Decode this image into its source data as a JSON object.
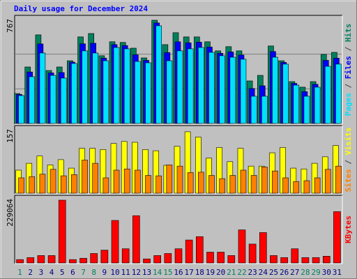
{
  "chart_data": [
    {
      "type": "bar",
      "title": "Daily usage for December 2024",
      "ylim": [
        0,
        767
      ],
      "yticks": [
        767
      ],
      "grid": true,
      "legend_separator": " / ",
      "series": [
        {
          "name": "Pages",
          "color": "#00e0ff",
          "values": [
            206,
            345,
            520,
            355,
            335,
            443,
            536,
            520,
            463,
            561,
            551,
            458,
            448,
            721,
            463,
            536,
            551,
            561,
            525,
            500,
            489,
            474,
            201,
            201,
            489,
            438,
            283,
            201,
            268,
            422,
            438
          ]
        },
        {
          "name": "Files",
          "color": "#0000ff",
          "values": [
            214,
            380,
            587,
            373,
            376,
            453,
            588,
            592,
            482,
            582,
            575,
            507,
            466,
            742,
            523,
            603,
            595,
            600,
            564,
            518,
            528,
            505,
            258,
            278,
            531,
            451,
            296,
            235,
            289,
            466,
            482
          ]
        },
        {
          "name": "Hits",
          "color": "#00805c",
          "values": [
            221,
            417,
            654,
            391,
            417,
            463,
            639,
            664,
            500,
            603,
            598,
            556,
            484,
            762,
            582,
            670,
            639,
            639,
            603,
            536,
            567,
            536,
            314,
            355,
            572,
            463,
            309,
            268,
            309,
            510,
            525
          ]
        }
      ]
    },
    {
      "type": "bar",
      "ylim": [
        0,
        157
      ],
      "yticks": [
        157
      ],
      "legend_separator": " / ",
      "series": [
        {
          "name": "Sites",
          "color": "#ff8000",
          "values": [
            38,
            41,
            47,
            59,
            43,
            46,
            82,
            74,
            38,
            57,
            60,
            57,
            44,
            43,
            70,
            67,
            51,
            52,
            44,
            36,
            44,
            57,
            44,
            65,
            55,
            38,
            29,
            31,
            38,
            59,
            67
          ]
        },
        {
          "name": "Visits",
          "color": "#ffff00",
          "values": [
            57,
            74,
            92,
            70,
            83,
            62,
            111,
            111,
            108,
            123,
            128,
            126,
            108,
            105,
            69,
            116,
            152,
            139,
            87,
            113,
            78,
            111,
            67,
            67,
            100,
            113,
            62,
            60,
            74,
            90,
            118
          ]
        }
      ]
    },
    {
      "type": "bar",
      "ylim": [
        0,
        229064
      ],
      "yticks": [
        229064
      ],
      "categories": [
        "1",
        "2",
        "3",
        "4",
        "5",
        "6",
        "7",
        "8",
        "9",
        "10",
        "11",
        "12",
        "13",
        "14",
        "15",
        "16",
        "17",
        "18",
        "19",
        "20",
        "21",
        "22",
        "23",
        "24",
        "25",
        "26",
        "27",
        "28",
        "29",
        "30",
        "31"
      ],
      "category_colors": [
        "#00805c",
        "#000080",
        "#000080",
        "#000080",
        "#000080",
        "#000080",
        "#00805c",
        "#00805c",
        "#000080",
        "#000080",
        "#000080",
        "#000080",
        "#000080",
        "#00805c",
        "#00805c",
        "#000080",
        "#000080",
        "#000080",
        "#000080",
        "#000080",
        "#00805c",
        "#00805c",
        "#000080",
        "#000080",
        "#000080",
        "#000080",
        "#000080",
        "#00805c",
        "#00805c",
        "#000080",
        "#000080"
      ],
      "series": [
        {
          "name": "KBytes",
          "color": "#ff0000",
          "values": [
            12185,
            19500,
            26800,
            26800,
            226600,
            12185,
            17000,
            34100,
            46300,
            153500,
            51200,
            170600,
            14600,
            26800,
            34100,
            51200,
            82900,
            95000,
            39000,
            39000,
            26800,
            119400,
            68200,
            109700,
            26800,
            19500,
            51200,
            19500,
            19500,
            24400,
            185200
          ]
        }
      ]
    }
  ]
}
